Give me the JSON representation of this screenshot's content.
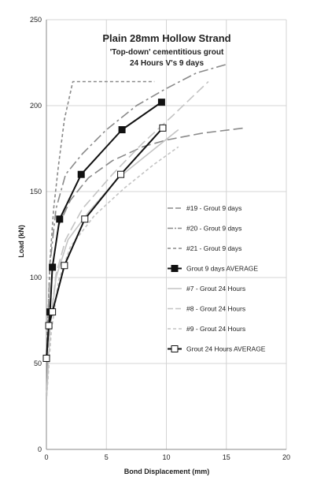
{
  "chart_data": {
    "type": "line",
    "title": "Plain 28mm Hollow Strand",
    "subtitle_lines": [
      "'Top-down' cementitious grout",
      "24 Hours V's 9 days"
    ],
    "xlabel": "Bond Displacement (mm)",
    "ylabel": "Load (kN)",
    "xlim": [
      0,
      20
    ],
    "ylim": [
      0,
      250
    ],
    "xticks": [
      0,
      5,
      10,
      15,
      20
    ],
    "yticks": [
      0,
      50,
      100,
      150,
      200,
      250
    ],
    "grid": true,
    "legend_position": "right",
    "series": [
      {
        "name": "#19 - Grout 9 days",
        "color": "#8a8a8a",
        "style": "longdash",
        "points": [
          [
            0,
            28
          ],
          [
            0.15,
            70
          ],
          [
            0.5,
            105
          ],
          [
            1.0,
            130
          ],
          [
            2.0,
            145
          ],
          [
            3.5,
            158
          ],
          [
            5.5,
            168
          ],
          [
            8.0,
            176
          ],
          [
            10.0,
            180
          ],
          [
            13.0,
            184
          ],
          [
            16.5,
            187
          ]
        ]
      },
      {
        "name": "#20 - Grout 9 days",
        "color": "#8a8a8a",
        "style": "dashdot",
        "points": [
          [
            0,
            28
          ],
          [
            0.1,
            70
          ],
          [
            0.3,
            108
          ],
          [
            0.8,
            140
          ],
          [
            1.6,
            160
          ],
          [
            3.0,
            172
          ],
          [
            5.0,
            186
          ],
          [
            7.5,
            200
          ],
          [
            10.0,
            210
          ],
          [
            12.5,
            219
          ],
          [
            15.0,
            224
          ]
        ]
      },
      {
        "name": "#21 - Grout 9 days",
        "color": "#8a8a8a",
        "style": "shortdash",
        "points": [
          [
            0,
            28
          ],
          [
            0.1,
            72
          ],
          [
            0.3,
            110
          ],
          [
            0.6,
            140
          ],
          [
            1.0,
            165
          ],
          [
            1.5,
            192
          ],
          [
            2.2,
            214
          ],
          [
            9.0,
            214
          ]
        ]
      },
      {
        "name": "Grout 9 days  AVERAGE",
        "color": "#111111",
        "style": "solid",
        "marker": "filled-square",
        "points": [
          [
            0,
            53
          ],
          [
            0.3,
            80
          ],
          [
            0.5,
            106
          ],
          [
            1.1,
            134
          ],
          [
            2.9,
            160
          ],
          [
            6.3,
            186
          ],
          [
            9.6,
            202
          ]
        ]
      },
      {
        "name": "#7 - Grout 24 Hours",
        "color": "#c4c4c4",
        "style": "solid",
        "points": [
          [
            0,
            28
          ],
          [
            0.3,
            70
          ],
          [
            0.8,
            100
          ],
          [
            1.8,
            122
          ],
          [
            3.5,
            138
          ],
          [
            6.0,
            158
          ],
          [
            8.5,
            172
          ],
          [
            11.0,
            186
          ]
        ]
      },
      {
        "name": "#8 - Grout 24 Hours",
        "color": "#c4c4c4",
        "style": "longdash",
        "points": [
          [
            0,
            28
          ],
          [
            0.3,
            72
          ],
          [
            0.8,
            102
          ],
          [
            1.6,
            122
          ],
          [
            3.0,
            140
          ],
          [
            5.5,
            160
          ],
          [
            8.0,
            178
          ],
          [
            10.5,
            194
          ],
          [
            13.5,
            214
          ]
        ]
      },
      {
        "name": "#9 - Grout 24 Hours",
        "color": "#c4c4c4",
        "style": "shortdash",
        "points": [
          [
            0,
            28
          ],
          [
            0.4,
            68
          ],
          [
            1.0,
            98
          ],
          [
            2.0,
            118
          ],
          [
            4.0,
            136
          ],
          [
            6.5,
            152
          ],
          [
            9.0,
            166
          ],
          [
            11.0,
            176
          ]
        ]
      },
      {
        "name": "Grout 24 Hours AVERAGE",
        "color": "#111111",
        "style": "solid",
        "marker": "open-square",
        "points": [
          [
            0,
            53
          ],
          [
            0.2,
            72
          ],
          [
            0.5,
            80
          ],
          [
            1.5,
            107
          ],
          [
            3.2,
            134
          ],
          [
            6.2,
            160
          ],
          [
            9.7,
            187
          ]
        ]
      }
    ]
  }
}
